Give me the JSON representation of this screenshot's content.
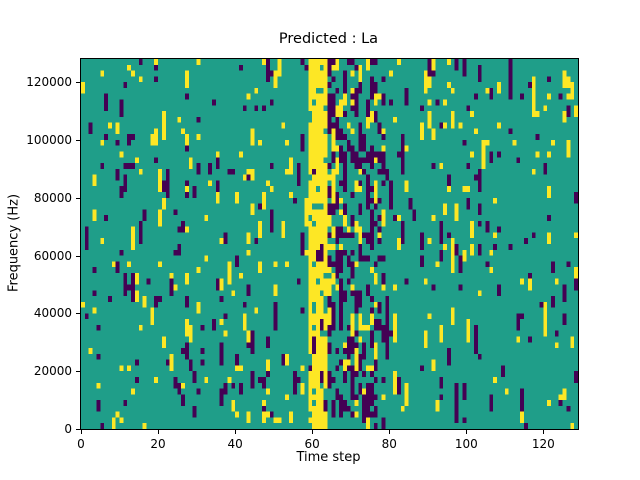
{
  "title": "Predicted : La",
  "axes": {
    "xlabel": "Time step",
    "ylabel": "Frequency (Hz)",
    "xticks": [
      0,
      20,
      40,
      60,
      80,
      100,
      120
    ],
    "yticks": [
      0,
      20000,
      40000,
      60000,
      80000,
      100000,
      120000
    ],
    "xlim": [
      0,
      129
    ],
    "ylim": [
      0,
      128000
    ]
  },
  "chart_data": {
    "type": "heatmap",
    "title": "Predicted : La",
    "xlabel": "Time step",
    "ylabel": "Frequency (Hz)",
    "x_range": [
      0,
      129
    ],
    "y_range": [
      0,
      128000
    ],
    "grid": false,
    "legend": "none",
    "cols": 129,
    "rows": 64,
    "colormap": {
      "low": "#440154",
      "mid": "#1f9e89",
      "high": "#fde725"
    },
    "value_levels": {
      "low": "purple cells (viridis minimum)",
      "mid": "teal background (viridis middle)",
      "high": "yellow cells (viridis maximum)"
    },
    "background_level": "mid",
    "sparse_high_prob": 0.035,
    "sparse_low_prob": 0.035,
    "cluster_prob": 0.42,
    "bands": [
      {
        "x0": 59,
        "x1": 63,
        "high_prob": 0.72,
        "low_prob": 0.05,
        "note": "dense yellow vertical band near time step 60"
      },
      {
        "x0": 64,
        "x1": 66,
        "high_prob": 0.12,
        "low_prob": 0.38,
        "note": "dark purple streaks just right of the yellow band"
      },
      {
        "x0": 67,
        "x1": 78,
        "high_prob": 0.1,
        "low_prob": 0.22,
        "note": "mixed purple/yellow activity between steps 67-78"
      }
    ],
    "seed": 1337
  }
}
